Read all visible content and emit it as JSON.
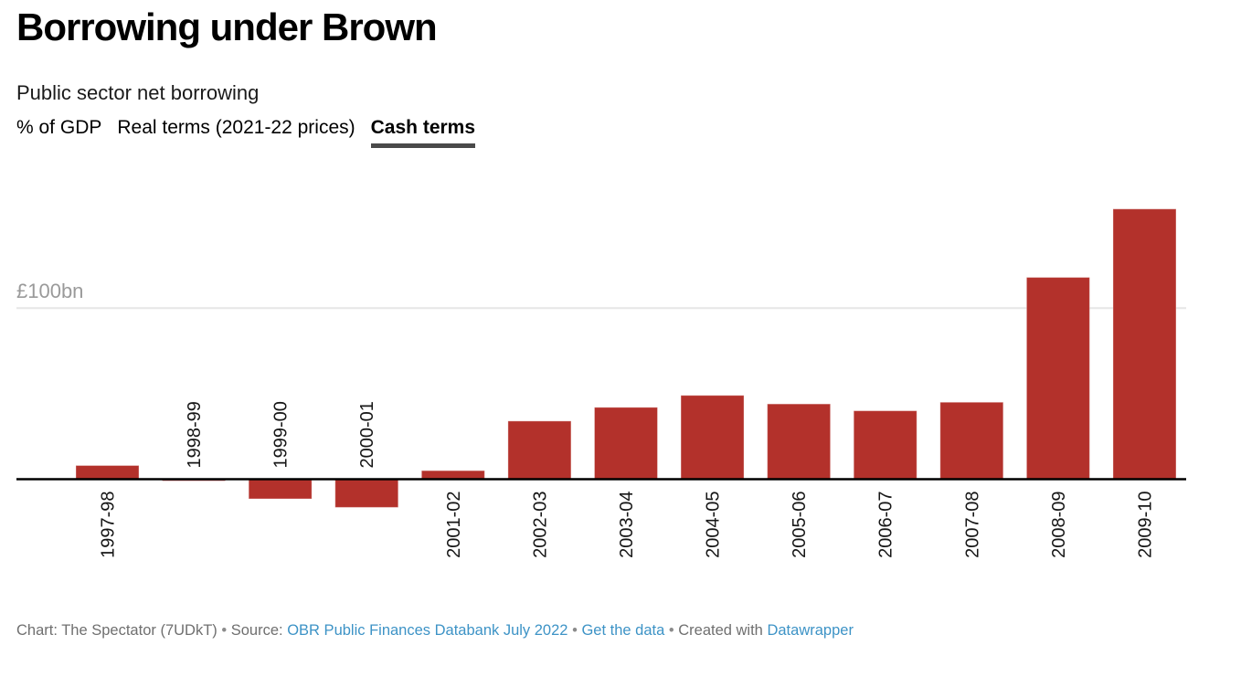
{
  "header": {
    "tabs": [
      {
        "label": "% of GDP",
        "active": false
      },
      {
        "label": "Real terms (2021-22 prices)",
        "active": false
      },
      {
        "label": "Cash terms",
        "active": true
      }
    ]
  },
  "chart_data": {
    "type": "bar",
    "title": "Borrowing under Brown",
    "subtitle": "Public sector net borrowing",
    "categories": [
      "1997-98",
      "1998-99",
      "1999-00",
      "2000-01",
      "2001-02",
      "2002-03",
      "2003-04",
      "2004-05",
      "2005-06",
      "2006-07",
      "2007-08",
      "2008-09",
      "2009-10"
    ],
    "values": [
      8,
      -1,
      -11.5,
      -16.5,
      5,
      34,
      42,
      49,
      44,
      40,
      45,
      118,
      158
    ],
    "unit": "£bn",
    "active_series": "Cash terms",
    "gridline_label": "£100bn",
    "gridline_value": 100,
    "ylim": [
      -20,
      165
    ],
    "grid": "single horizontal gridline at 100, zero baseline in black",
    "legend": "none",
    "xlabel": "",
    "ylabel": "£bn",
    "label_placement": "rotated -90, below axis for positive bars, above axis for negative bars",
    "bar_color": "#b3312b",
    "bar_stroke": "#ffffff",
    "gridline_color": "#e6e6e6",
    "axis_color": "#000000",
    "label_color": "#161616"
  },
  "footer": {
    "attribution": "Chart: The Spectator (7UDkT)",
    "bullet": "•",
    "source_label": "Source:",
    "source_link": "OBR Public Finances Databank July 2022",
    "get_data_link": "Get the data",
    "created_with": "Created with",
    "tool_link": "Datawrapper",
    "link_color": "#3d93c6"
  }
}
